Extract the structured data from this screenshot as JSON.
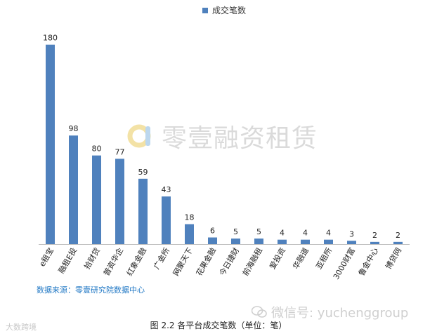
{
  "chart_data": {
    "type": "bar",
    "title": "",
    "legend": [
      "成交笔数"
    ],
    "legend_position": "top-center",
    "categories": [
      "e租宝",
      "融租E投",
      "拾财贷",
      "普资华企",
      "红象金融",
      "广金所",
      "网聚天下",
      "花果金融",
      "今日捷财",
      "前海融租",
      "爱投资",
      "华融道",
      "亚租所",
      "3000财富",
      "鲁金中心",
      "博贷网"
    ],
    "series": [
      {
        "name": "成交笔数",
        "values": [
          180,
          98,
          80,
          77,
          59,
          43,
          18,
          6,
          5,
          5,
          4,
          4,
          4,
          3,
          2,
          2
        ]
      }
    ],
    "xlabel": "",
    "ylabel": "",
    "ylim": [
      0,
      195
    ],
    "grid": false,
    "bar_color": "#4f81bd"
  },
  "source_note": "数据来源：零壹研究院数据中心",
  "caption": "图 2.2 各平台成交笔数（单位：笔）",
  "watermark": {
    "brand": "零壹融资租赁",
    "wechat": "微信号: yuchenggroup",
    "corner": "大数跨境"
  }
}
